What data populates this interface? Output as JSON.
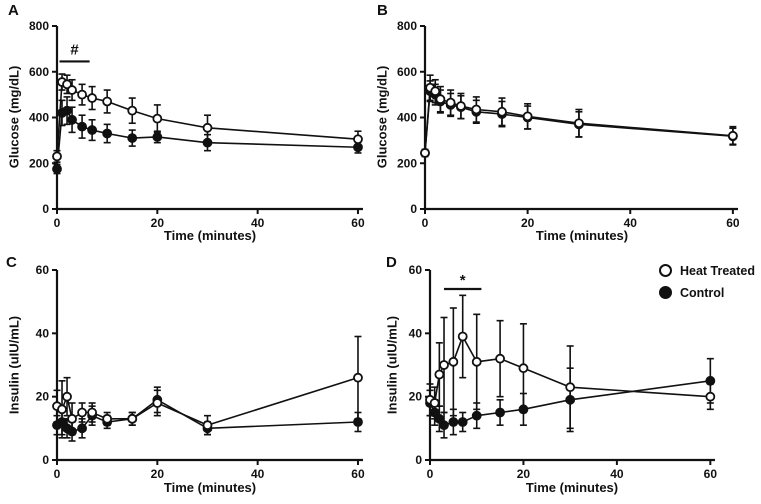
{
  "figure": {
    "background": "#ffffff",
    "line_color": "#111111"
  },
  "legend": {
    "items": [
      {
        "label": "Heat Treated",
        "marker": "open"
      },
      {
        "label": "Control",
        "marker": "filled"
      }
    ]
  },
  "chart_data": [
    {
      "type": "line",
      "panel": "A",
      "xlabel": "Time  (minutes)",
      "ylabel": "Glucose (mg/dL)",
      "xlim": [
        0,
        61
      ],
      "ylim": [
        0,
        800
      ],
      "xticks": [
        0,
        20,
        40,
        60
      ],
      "yticks": [
        0,
        200,
        400,
        600,
        800
      ],
      "x": [
        0,
        1,
        2,
        3,
        5,
        7,
        10,
        15,
        20,
        30,
        60
      ],
      "annotation": {
        "symbol": "#",
        "x1": 0.5,
        "x2": 6.5,
        "y": 645
      },
      "series": [
        {
          "name": "Heat Treated",
          "marker": "open",
          "values": [
            230,
            555,
            545,
            520,
            500,
            485,
            470,
            430,
            395,
            355,
            305
          ],
          "errors": [
            25,
            35,
            40,
            45,
            45,
            50,
            50,
            55,
            60,
            55,
            35
          ]
        },
        {
          "name": "Control",
          "marker": "filled",
          "values": [
            175,
            420,
            430,
            390,
            360,
            345,
            330,
            310,
            315,
            290,
            270
          ],
          "errors": [
            20,
            55,
            60,
            55,
            50,
            45,
            40,
            35,
            25,
            35,
            25
          ]
        }
      ]
    },
    {
      "type": "line",
      "panel": "B",
      "xlabel": "Time  (minutes)",
      "ylabel": "Glucose (mg/dL)",
      "xlim": [
        0,
        61
      ],
      "ylim": [
        0,
        800
      ],
      "xticks": [
        0,
        20,
        40,
        60
      ],
      "yticks": [
        0,
        200,
        400,
        600,
        800
      ],
      "x": [
        0,
        1,
        2,
        3,
        5,
        7,
        10,
        15,
        20,
        30,
        60
      ],
      "annotation": null,
      "series": [
        {
          "name": "Heat Treated",
          "marker": "open",
          "values": [
            245,
            530,
            515,
            480,
            465,
            450,
            435,
            425,
            405,
            375,
            320
          ],
          "errors": [
            15,
            55,
            50,
            55,
            55,
            55,
            55,
            60,
            55,
            60,
            40
          ]
        },
        {
          "name": "Control",
          "marker": "filled",
          "values": [
            245,
            515,
            500,
            470,
            455,
            445,
            425,
            415,
            400,
            370,
            318
          ],
          "errors": [
            15,
            45,
            45,
            50,
            50,
            50,
            50,
            55,
            50,
            55,
            35
          ]
        }
      ]
    },
    {
      "type": "line",
      "panel": "C",
      "xlabel": "Time  (minutes)",
      "ylabel": "Insulin  (uIU/mL)",
      "xlim": [
        0,
        61
      ],
      "ylim": [
        0,
        60
      ],
      "xticks": [
        0,
        20,
        40,
        60
      ],
      "yticks": [
        0,
        20,
        40,
        60
      ],
      "x": [
        0,
        1,
        2,
        3,
        5,
        7,
        10,
        15,
        20,
        30,
        60
      ],
      "annotation": null,
      "series": [
        {
          "name": "Heat Treated",
          "marker": "open",
          "values": [
            17,
            16,
            20,
            13,
            15,
            15,
            13,
            13,
            18,
            11,
            26
          ],
          "errors": [
            5,
            9,
            6,
            5,
            3,
            3,
            2,
            2,
            4,
            3,
            13
          ]
        },
        {
          "name": "Control",
          "marker": "filled",
          "values": [
            11,
            12,
            10,
            9,
            10,
            14,
            12,
            13,
            19,
            10,
            12
          ],
          "errors": [
            3,
            4,
            3,
            3,
            3,
            3,
            2,
            2,
            4,
            2,
            3
          ]
        }
      ]
    },
    {
      "type": "line",
      "panel": "D",
      "xlabel": "Time  (minutes)",
      "ylabel": "Insulin  (uIU/mL)",
      "xlim": [
        0,
        61
      ],
      "ylim": [
        0,
        60
      ],
      "xticks": [
        0,
        20,
        40,
        60
      ],
      "yticks": [
        0,
        20,
        40,
        60
      ],
      "x": [
        0,
        1,
        2,
        3,
        5,
        7,
        10,
        15,
        20,
        30,
        60
      ],
      "annotation": {
        "symbol": "*",
        "x1": 3,
        "x2": 11,
        "y": 54
      },
      "series": [
        {
          "name": "Heat Treated",
          "marker": "open",
          "values": [
            19,
            18,
            27,
            30,
            31,
            39,
            31,
            32,
            29,
            23,
            20
          ],
          "errors": [
            5,
            5,
            10,
            15,
            17,
            13,
            15,
            12,
            14,
            13,
            4
          ]
        },
        {
          "name": "Control",
          "marker": "filled",
          "values": [
            18,
            15,
            13,
            11,
            12,
            12,
            14,
            15,
            16,
            19,
            25
          ],
          "errors": [
            4,
            4,
            4,
            4,
            4,
            3,
            4,
            4,
            5,
            10,
            7
          ]
        }
      ]
    }
  ]
}
